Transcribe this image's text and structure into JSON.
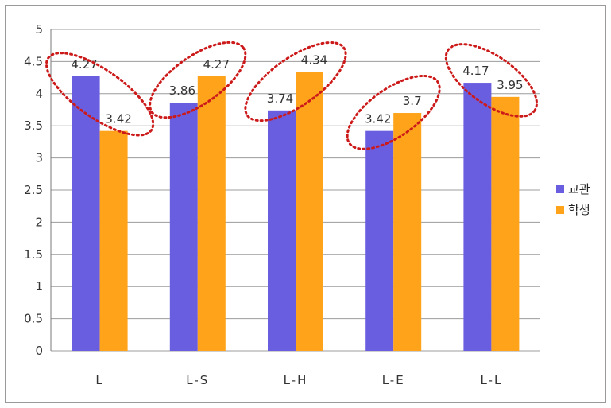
{
  "chart_data": {
    "type": "bar",
    "categories": [
      "L",
      "L-S",
      "L-H",
      "L-E",
      "L-L"
    ],
    "series": [
      {
        "name": "교관",
        "values": [
          4.27,
          3.86,
          3.74,
          3.42,
          4.17
        ],
        "color": "#6a5ee0"
      },
      {
        "name": "학생",
        "values": [
          3.42,
          4.27,
          4.34,
          3.7,
          3.95
        ],
        "color": "#ffa31a"
      }
    ],
    "data_labels": [
      [
        "4.27",
        "3.86",
        "3.74",
        "3.42",
        "4.17"
      ],
      [
        "3.42",
        "4.27",
        "4.34",
        "3.7",
        "3.95"
      ]
    ],
    "yticks": [
      "0",
      "0.5",
      "1",
      "1.5",
      "2",
      "2.5",
      "3",
      "3.5",
      "4",
      "4.5",
      "5"
    ],
    "ylim": [
      0,
      5
    ],
    "grid": true,
    "legend_position": "right",
    "annotation": "red dotted ellipses around each category's pair of values",
    "annotation_color": "#cc1a1a"
  }
}
